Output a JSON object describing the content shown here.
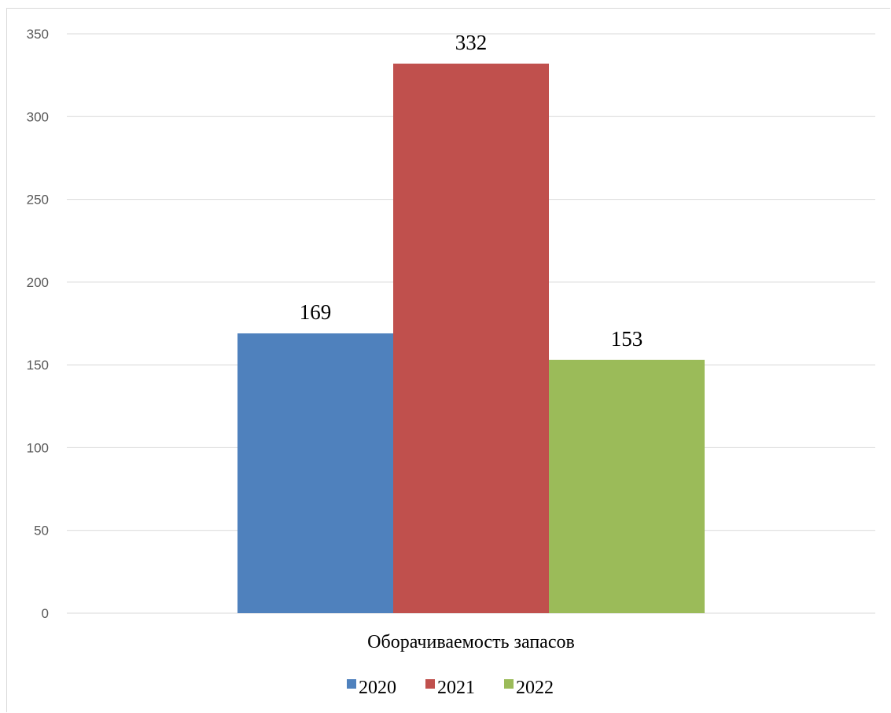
{
  "chart_data": {
    "type": "bar",
    "categories": [
      "Оборачиваемость запасов"
    ],
    "series": [
      {
        "name": "2020",
        "values": [
          169
        ],
        "color": "#4f81bd"
      },
      {
        "name": "2021",
        "values": [
          332
        ],
        "color": "#c0504d"
      },
      {
        "name": "2022",
        "values": [
          153
        ],
        "color": "#9bbb59"
      }
    ],
    "ylim": [
      0,
      350
    ],
    "yticks": [
      0,
      50,
      100,
      150,
      200,
      250,
      300,
      350
    ],
    "grid": true,
    "legend_position": "bottom",
    "data_labels": true
  }
}
